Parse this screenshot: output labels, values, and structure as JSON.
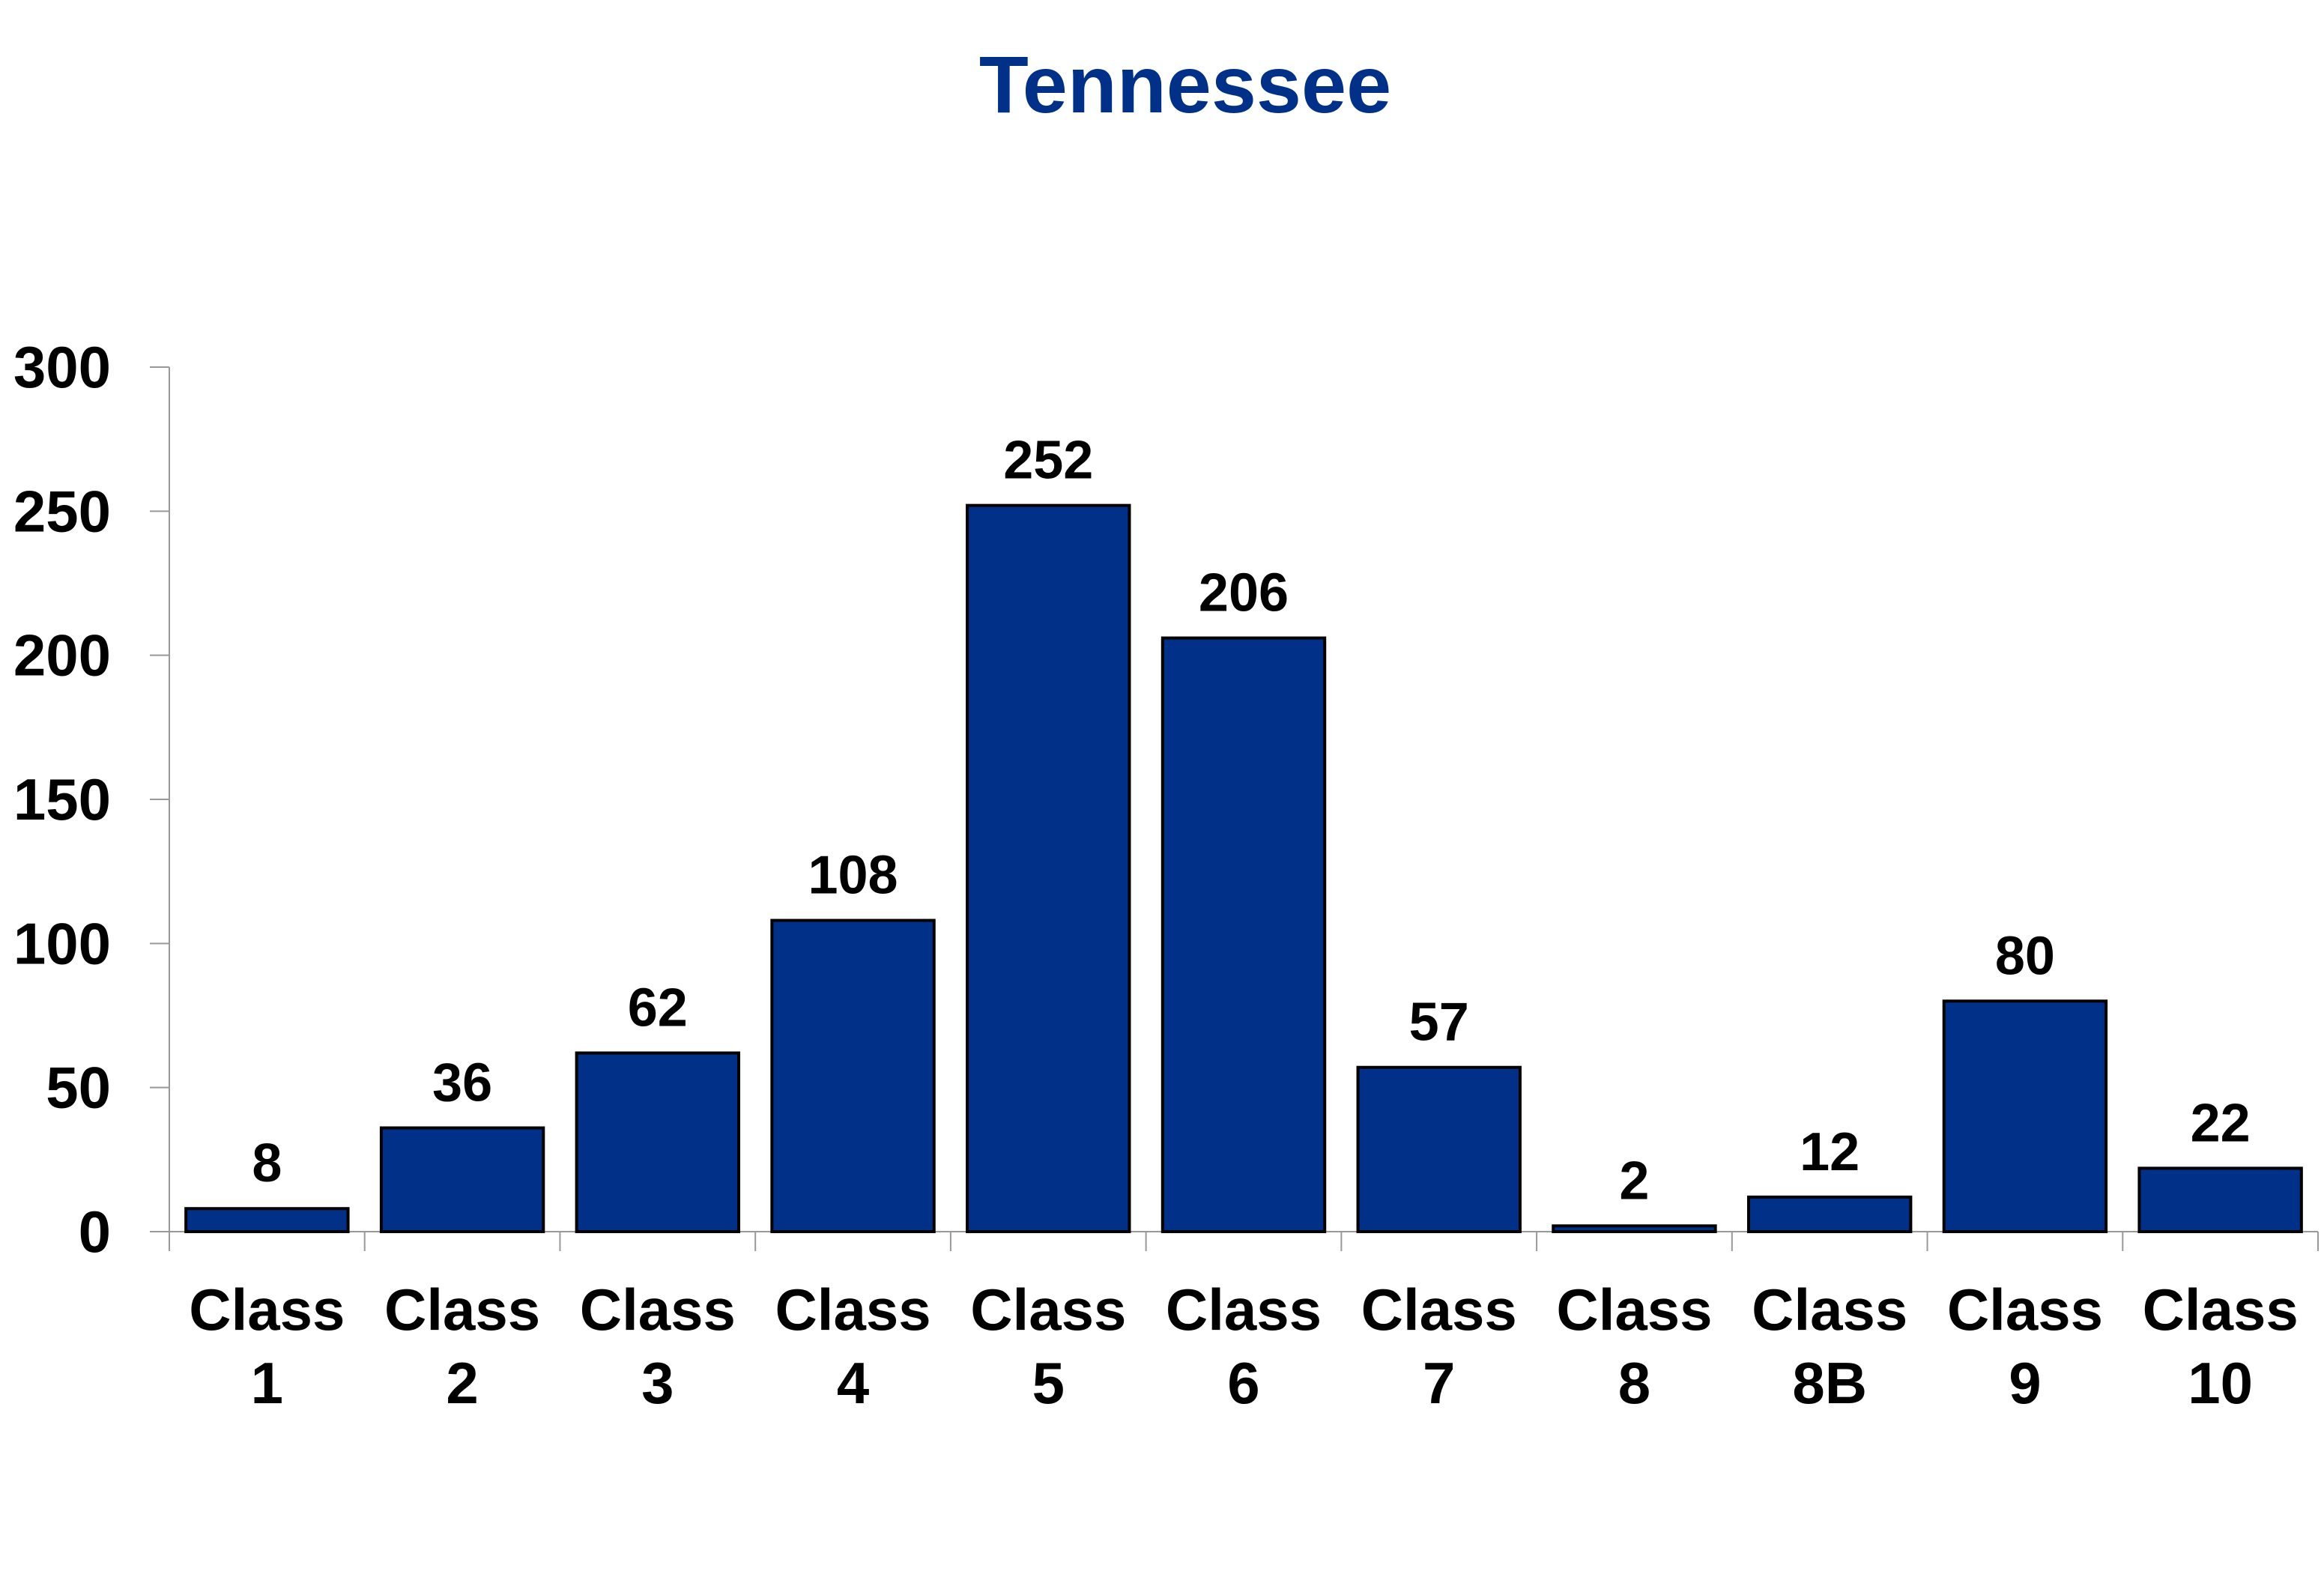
{
  "colors": {
    "bar_fill": "#003087",
    "bar_stroke": "#000000",
    "title": "#003087",
    "axis": "#999999"
  },
  "chart_data": {
    "type": "bar",
    "title": "Tennessee",
    "xlabel": "",
    "ylabel": "",
    "categories": [
      [
        "Class",
        "1"
      ],
      [
        "Class",
        "2"
      ],
      [
        "Class",
        "3"
      ],
      [
        "Class",
        "4"
      ],
      [
        "Class",
        "5"
      ],
      [
        "Class",
        "6"
      ],
      [
        "Class",
        "7"
      ],
      [
        "Class",
        "8"
      ],
      [
        "Class",
        "8B"
      ],
      [
        "Class",
        "9"
      ],
      [
        "Class",
        "10"
      ]
    ],
    "values": [
      8,
      36,
      62,
      108,
      252,
      206,
      57,
      2,
      12,
      80,
      22
    ],
    "data_labels": [
      "8",
      "36",
      "62",
      "108",
      "252",
      "206",
      "57",
      "2",
      "12",
      "80",
      "22"
    ],
    "ylim": [
      0,
      300
    ],
    "yticks": [
      0,
      50,
      100,
      150,
      200,
      250,
      300
    ],
    "ytick_labels": [
      "0",
      "50",
      "100",
      "150",
      "200",
      "250",
      "300"
    ],
    "grid": false,
    "legend": "none"
  }
}
